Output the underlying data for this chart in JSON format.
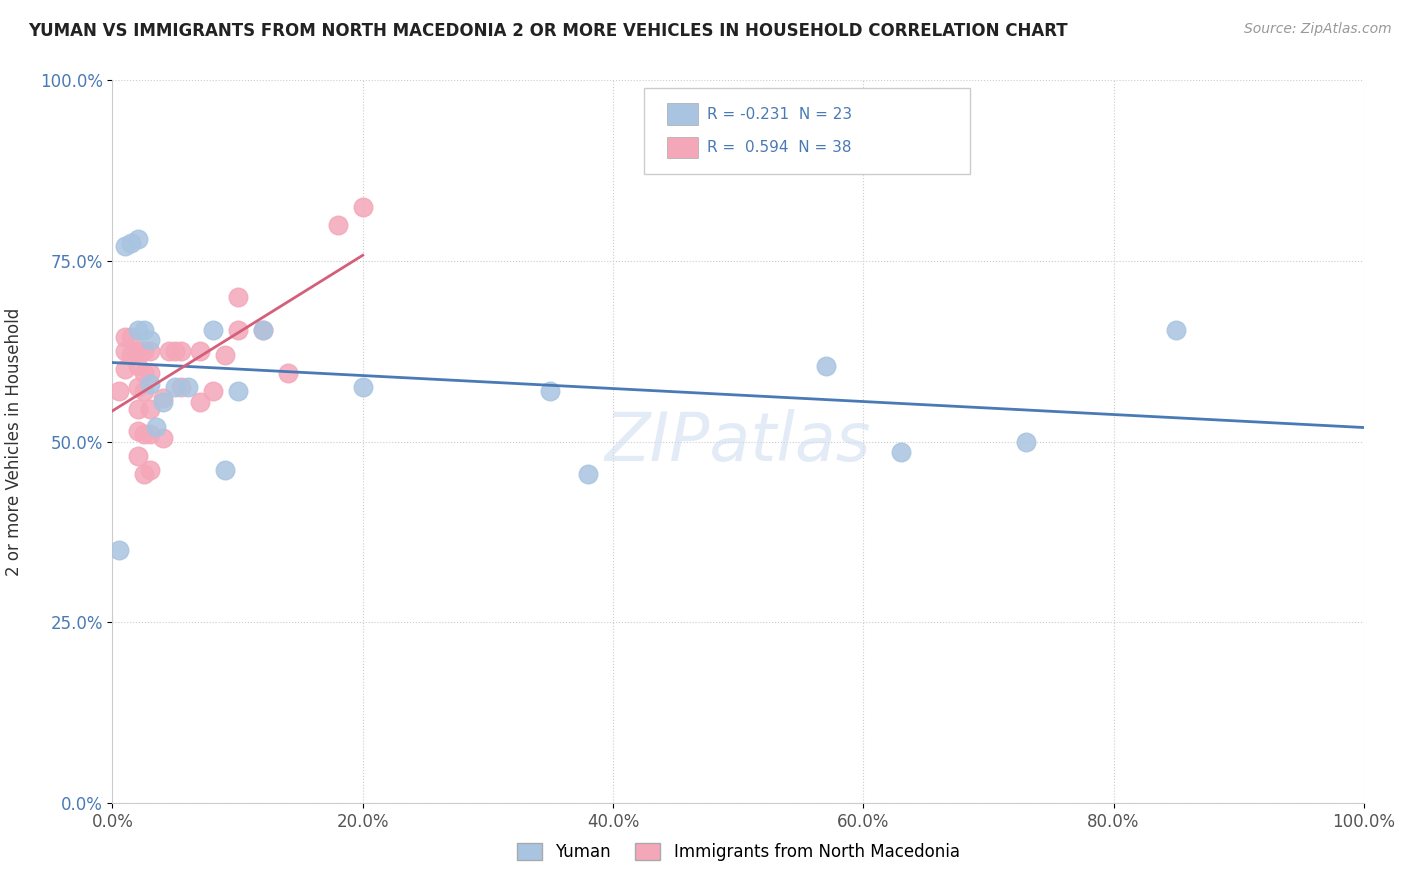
{
  "title": "YUMAN VS IMMIGRANTS FROM NORTH MACEDONIA 2 OR MORE VEHICLES IN HOUSEHOLD CORRELATION CHART",
  "source": "Source: ZipAtlas.com",
  "ylabel": "2 or more Vehicles in Household",
  "xlim": [
    0.0,
    1.0
  ],
  "ylim": [
    0.0,
    1.0
  ],
  "xticks": [
    0.0,
    0.2,
    0.4,
    0.6,
    0.8,
    1.0
  ],
  "yticks": [
    0.0,
    0.25,
    0.5,
    0.75,
    1.0
  ],
  "xtick_labels": [
    "0.0%",
    "20.0%",
    "40.0%",
    "60.0%",
    "80.0%",
    "100.0%"
  ],
  "ytick_labels": [
    "0.0%",
    "25.0%",
    "50.0%",
    "75.0%",
    "100.0%"
  ],
  "blue_label": "Yuman",
  "pink_label": "Immigrants from North Macedonia",
  "blue_R": -0.231,
  "blue_N": 23,
  "pink_R": 0.594,
  "pink_N": 38,
  "blue_color": "#a8c4e0",
  "pink_color": "#f4a7b9",
  "blue_line_color": "#4a7ab5",
  "pink_line_color": "#d45f7a",
  "blue_points_x": [
    0.005,
    0.01,
    0.015,
    0.02,
    0.02,
    0.025,
    0.03,
    0.03,
    0.035,
    0.04,
    0.05,
    0.06,
    0.08,
    0.09,
    0.1,
    0.12,
    0.2,
    0.35,
    0.38,
    0.57,
    0.63,
    0.73,
    0.85
  ],
  "blue_points_y": [
    0.35,
    0.77,
    0.775,
    0.78,
    0.655,
    0.655,
    0.64,
    0.58,
    0.52,
    0.555,
    0.575,
    0.575,
    0.655,
    0.46,
    0.57,
    0.655,
    0.575,
    0.57,
    0.455,
    0.605,
    0.485,
    0.5,
    0.655
  ],
  "pink_points_x": [
    0.005,
    0.01,
    0.01,
    0.01,
    0.015,
    0.015,
    0.02,
    0.02,
    0.02,
    0.02,
    0.02,
    0.02,
    0.025,
    0.025,
    0.025,
    0.025,
    0.025,
    0.03,
    0.03,
    0.03,
    0.03,
    0.03,
    0.04,
    0.04,
    0.045,
    0.05,
    0.055,
    0.055,
    0.07,
    0.07,
    0.08,
    0.09,
    0.1,
    0.1,
    0.12,
    0.14,
    0.18,
    0.2
  ],
  "pink_points_y": [
    0.57,
    0.6,
    0.625,
    0.645,
    0.62,
    0.645,
    0.48,
    0.515,
    0.545,
    0.575,
    0.605,
    0.625,
    0.455,
    0.51,
    0.57,
    0.595,
    0.625,
    0.46,
    0.51,
    0.545,
    0.595,
    0.625,
    0.505,
    0.56,
    0.625,
    0.625,
    0.575,
    0.625,
    0.555,
    0.625,
    0.57,
    0.62,
    0.655,
    0.7,
    0.655,
    0.595,
    0.8,
    0.825
  ]
}
